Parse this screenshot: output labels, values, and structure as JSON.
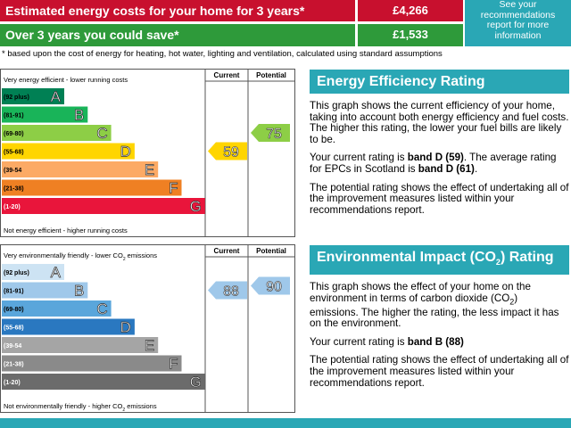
{
  "costs": {
    "rows": [
      {
        "label": "Estimated energy costs for your home for 3 years*",
        "value": "£4,266"
      },
      {
        "label": "Over 3 years you could save*",
        "value": "£1,533"
      }
    ],
    "link": "See your recommendations report for more information"
  },
  "footnote": "* based upon the cost of energy for heating, hot water, lighting and ventilation, calculated using standard assumptions",
  "charts": [
    {
      "top": [
        "Very energy efficient - lower running costs"
      ],
      "bottom": [
        "Not energy efficient - higher running costs"
      ],
      "col_current": "Current",
      "col_potential": "Potential",
      "colors": [
        "#008054",
        "#19b459",
        "#8dce46",
        "#ffd500",
        "#fcaa65",
        "#ef8023",
        "#e9153b"
      ],
      "bands": [
        {
          "range": "(92 plus)",
          "letter": "A"
        },
        {
          "range": "(81-91)",
          "letter": "B"
        },
        {
          "range": "(69-80)",
          "letter": "C"
        },
        {
          "range": "(55-68)",
          "letter": "D"
        },
        {
          "range": "(39-54",
          "letter": "E"
        },
        {
          "range": "(21-38)",
          "letter": "F"
        },
        {
          "range": "(1-20)",
          "letter": "G"
        }
      ],
      "current": "59",
      "current_color": "#ffd500",
      "potential": "75",
      "potential_color": "#8dce46"
    },
    {
      "top": [
        "Very environmentally friendly - lower CO",
        "2",
        " emissions"
      ],
      "bottom": [
        "Not environmentally friendly - higher CO",
        "2",
        " emissions"
      ],
      "col_current": "Current",
      "col_potential": "Potential",
      "colors": [
        "#cde3f3",
        "#9fc8ea",
        "#5aa6db",
        "#2a78c0",
        "#a5a5a5",
        "#8a8a8a",
        "#6b6b6b"
      ],
      "bands": [
        {
          "range": "(92 plus)",
          "letter": "A"
        },
        {
          "range": "(81-91)",
          "letter": "B"
        },
        {
          "range": "(69-80)",
          "letter": "C"
        },
        {
          "range": "(55-68)",
          "letter": "D"
        },
        {
          "range": "(39-54",
          "letter": "E"
        },
        {
          "range": "(21-38)",
          "letter": "F"
        },
        {
          "range": "(1-20)",
          "letter": "G"
        }
      ],
      "current": "88",
      "current_color": "#9fc8ea",
      "potential": "90",
      "potential_color": "#9fc8ea"
    }
  ],
  "panels": [
    {
      "title": [
        "Energy Efficiency Rating"
      ],
      "paragraphs": [
        [
          "This graph shows the current efficiency of your home, taking into account both energy efficiency and fuel costs. The higher this rating, the lower your fuel bills are likely to be."
        ],
        [
          "Your current rating is ",
          "band D (59)",
          ". The average rating for EPCs in Scotland is ",
          "band D (61)",
          "."
        ],
        [
          "The potential rating shows the effect of undertaking all of the improvement measures listed within your recommendations report."
        ]
      ]
    },
    {
      "title": [
        "Environmental Impact (CO",
        "2",
        ") Rating"
      ],
      "paragraphs": [
        [
          "This graph shows the effect of your home on the environment in terms of carbon dioxide (CO",
          "2",
          ") emissions. The higher the rating, the less impact it has on the environment."
        ],
        [
          "Your current rating is ",
          "band B (88)"
        ],
        [
          "The potential rating shows the effect of undertaking all of the improvement measures listed within your recommendations report."
        ]
      ]
    }
  ]
}
